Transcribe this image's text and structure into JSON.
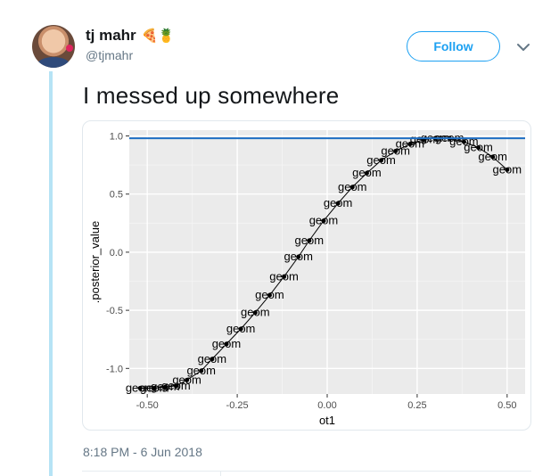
{
  "tweet": {
    "author_name": "tj mahr",
    "author_emoji": "🍕🍍",
    "handle": "@tjmahr",
    "follow_label": "Follow",
    "text": "I messed up somewhere",
    "timestamp": "8:18 PM - 6 Jun 2018"
  },
  "colors": {
    "accent": "#1da1f2",
    "thread_line": "#b6e3f5",
    "plot_panel": "#ebebeb",
    "hline": "#1f6fc4"
  },
  "chart_data": {
    "type": "scatter",
    "title": "",
    "xlabel": "ot1",
    "ylabel": ".posterior_value",
    "xlim": [
      -0.55,
      0.55
    ],
    "ylim": [
      -1.22,
      1.05
    ],
    "x_ticks": [
      -0.5,
      -0.25,
      0.0,
      0.25,
      0.5
    ],
    "x_tick_labels": [
      "-0.50",
      "-0.25",
      "0.00",
      "0.25",
      "0.50"
    ],
    "y_ticks": [
      -1.0,
      -0.5,
      0.0,
      0.5,
      1.0
    ],
    "y_tick_labels": [
      "-1.0",
      "-0.5",
      "0.0",
      "0.5",
      "1.0"
    ],
    "grid": true,
    "hline": 0.98,
    "point_label": "geom",
    "points": [
      {
        "x": -0.52,
        "y": -1.17
      },
      {
        "x": -0.48,
        "y": -1.17
      },
      {
        "x": -0.45,
        "y": -1.16
      },
      {
        "x": -0.42,
        "y": -1.15
      },
      {
        "x": -0.39,
        "y": -1.1
      },
      {
        "x": -0.35,
        "y": -1.02
      },
      {
        "x": -0.32,
        "y": -0.92
      },
      {
        "x": -0.28,
        "y": -0.79
      },
      {
        "x": -0.24,
        "y": -0.66
      },
      {
        "x": -0.2,
        "y": -0.52
      },
      {
        "x": -0.16,
        "y": -0.37
      },
      {
        "x": -0.12,
        "y": -0.21
      },
      {
        "x": -0.08,
        "y": -0.04
      },
      {
        "x": -0.05,
        "y": 0.1
      },
      {
        "x": -0.01,
        "y": 0.27
      },
      {
        "x": 0.03,
        "y": 0.42
      },
      {
        "x": 0.07,
        "y": 0.56
      },
      {
        "x": 0.11,
        "y": 0.68
      },
      {
        "x": 0.15,
        "y": 0.79
      },
      {
        "x": 0.19,
        "y": 0.87
      },
      {
        "x": 0.23,
        "y": 0.93
      },
      {
        "x": 0.27,
        "y": 0.97
      },
      {
        "x": 0.3,
        "y": 0.98
      },
      {
        "x": 0.34,
        "y": 0.98
      },
      {
        "x": 0.38,
        "y": 0.95
      },
      {
        "x": 0.42,
        "y": 0.9
      },
      {
        "x": 0.46,
        "y": 0.82
      },
      {
        "x": 0.5,
        "y": 0.71
      }
    ]
  }
}
